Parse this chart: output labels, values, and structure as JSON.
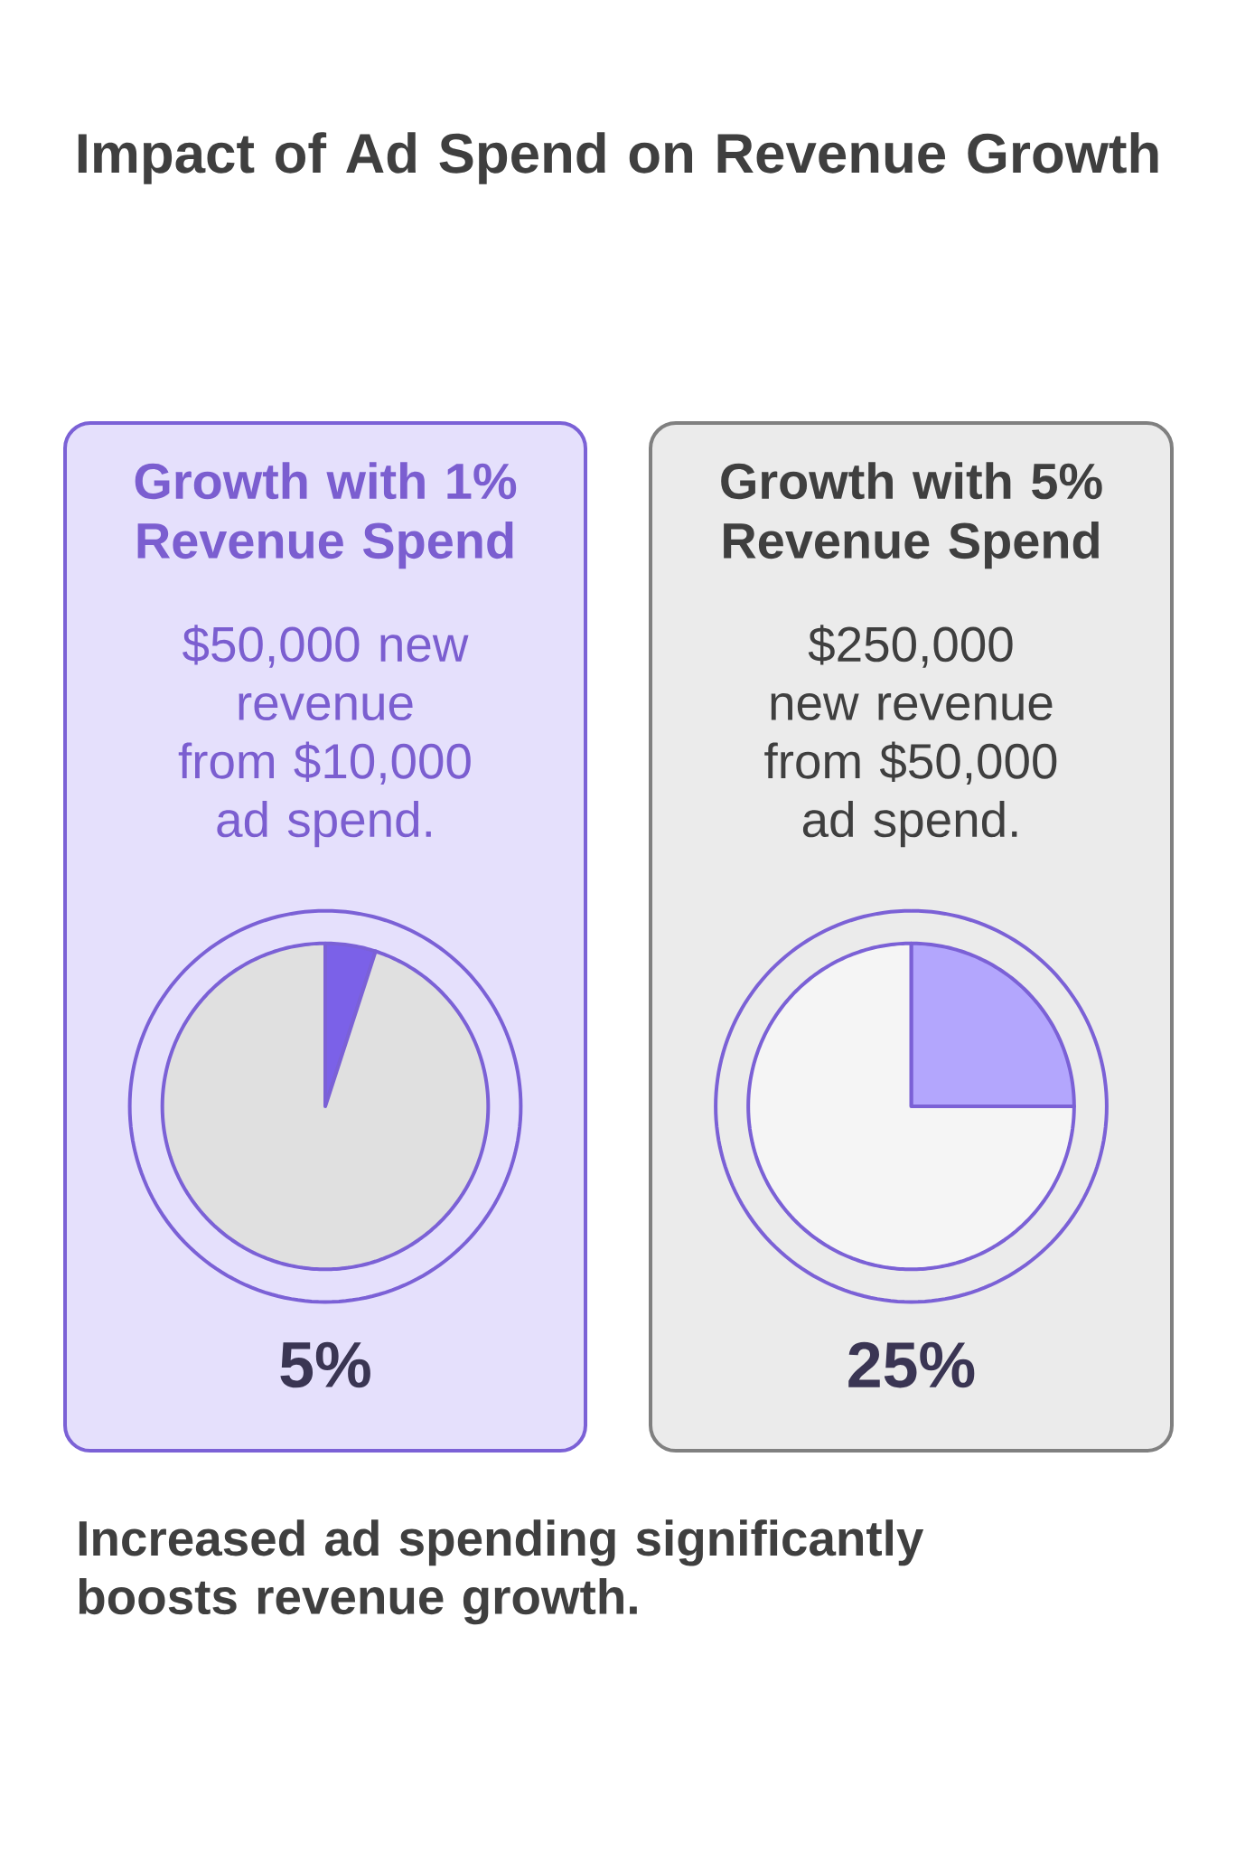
{
  "chart_data": [
    {
      "type": "other",
      "title": "Impact of Ad Spend on Revenue Growth",
      "annotations": [
        "Increased ad spending significantly boosts revenue growth."
      ]
    },
    {
      "type": "pie",
      "title": "Growth with 1% Revenue Spend",
      "subtitle": "$50,000 new revenue from $10,000 ad spend.",
      "categories": [
        null,
        null
      ],
      "values": [
        5,
        95
      ],
      "colors": [
        "#7b61e8",
        "#e0e0e0"
      ],
      "annotations": [
        "5%"
      ]
    },
    {
      "type": "pie",
      "title": "Growth with 5% Revenue Spend",
      "subtitle": "$250,000 new revenue from $50,000 ad spend.",
      "categories": [
        null,
        null
      ],
      "values": [
        25,
        75
      ],
      "colors": [
        "#b3a6fd",
        "#f5f5f5"
      ],
      "annotations": [
        "25%"
      ]
    }
  ]
}
